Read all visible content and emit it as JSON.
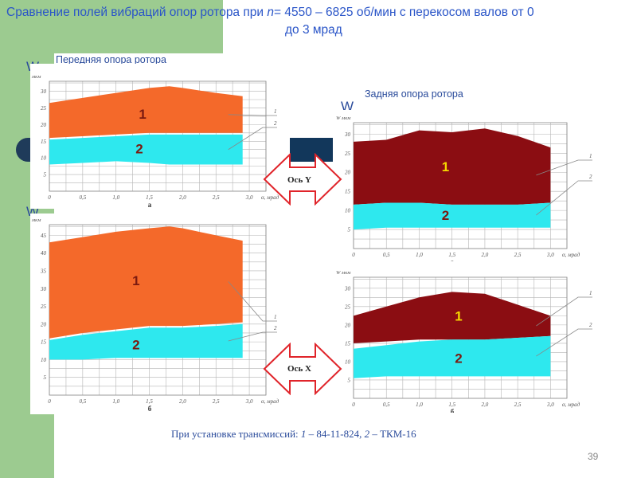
{
  "slide": {
    "title_part1": "Сравнение полей вибраций опор ротора  при   ",
    "title_n": "n",
    "title_part2": "= 4550 – 6825 об/мин с перекосом валов от 0",
    "title_line2": "до 3 мрад",
    "front_label": "Передняя опора ротора",
    "rear_label": "Задняя опора ротора",
    "w_symbol": "W",
    "axis_y_label": "Ось Y",
    "axis_x_label": "Ось X",
    "caption_prefix": "При установке трансмиссий: ",
    "caption_1": "1",
    "caption_mid": " – 84-11-824, ",
    "caption_2": "2",
    "caption_end": " – ТКМ-16",
    "page_number": "39",
    "colors": {
      "accent_green": "#9ccb90",
      "title_blue": "#2a55c8",
      "orange": "#f4692a",
      "cyan": "#2ee8ee",
      "dark_red": "#8b0d12",
      "arrow_red": "#e0242a"
    }
  },
  "chart_data": [
    {
      "id": "front-a",
      "type": "area",
      "panel_label": "а",
      "ylabel": "мкм",
      "xlabel": "α, мрад",
      "x_ticks": [
        "0",
        "0,5",
        "1,0",
        "1,5",
        "2,0",
        "2,5",
        "3,0"
      ],
      "y_ticks": [
        "5",
        "10",
        "15",
        "20",
        "25",
        "30"
      ],
      "ylim": [
        0,
        33
      ],
      "xlim": [
        0,
        3.25
      ],
      "band_labels": [
        "1",
        "2"
      ],
      "legend_marks": [
        "1",
        "2"
      ],
      "series": [
        {
          "name": "1",
          "color": "#f4692a",
          "x": [
            0,
            0.5,
            1.0,
            1.5,
            1.8,
            2.0,
            2.5,
            2.9
          ],
          "upper": [
            26.5,
            28,
            29.5,
            31,
            31.5,
            31,
            29.5,
            28.5
          ],
          "lower": [
            16,
            16.5,
            17,
            17.5,
            17.5,
            17.5,
            17.5,
            17.5
          ]
        },
        {
          "name": "2",
          "color": "#2ee8ee",
          "x": [
            0,
            0.5,
            1.0,
            1.5,
            1.8,
            2.0,
            2.5,
            2.9
          ],
          "upper": [
            15.5,
            16,
            16.5,
            17,
            17,
            17,
            17,
            17
          ],
          "lower": [
            8,
            8.5,
            9,
            8.5,
            8,
            8,
            8,
            8
          ]
        }
      ]
    },
    {
      "id": "front-b",
      "type": "area",
      "panel_label": "б",
      "ylabel": "мкм",
      "xlabel": "α, мрад",
      "x_ticks": [
        "0",
        "0,5",
        "1,0",
        "1,5",
        "2,0",
        "2,5",
        "3,0"
      ],
      "y_ticks": [
        "5",
        "10",
        "15",
        "20",
        "25",
        "30",
        "35",
        "40",
        "45"
      ],
      "ylim": [
        0,
        48
      ],
      "xlim": [
        0,
        3.25
      ],
      "band_labels": [
        "1",
        "2"
      ],
      "legend_marks": [
        "1",
        "2"
      ],
      "series": [
        {
          "name": "1",
          "color": "#f4692a",
          "x": [
            0,
            0.5,
            1.0,
            1.5,
            1.8,
            2.0,
            2.5,
            2.9
          ],
          "upper": [
            43,
            44.5,
            46,
            47,
            47.5,
            47,
            45,
            43.5
          ],
          "lower": [
            16,
            17.5,
            18.5,
            19.5,
            19.5,
            19.5,
            20,
            20.5
          ]
        },
        {
          "name": "2",
          "color": "#2ee8ee",
          "x": [
            0,
            0.5,
            1.0,
            1.5,
            1.8,
            2.0,
            2.5,
            2.9
          ],
          "upper": [
            15.5,
            17,
            18,
            19,
            19,
            19,
            19.5,
            20
          ],
          "lower": [
            10,
            10,
            10.5,
            10.5,
            10.5,
            10.5,
            10.5,
            10.5
          ]
        }
      ]
    },
    {
      "id": "rear-a",
      "type": "area",
      "panel_label": "а",
      "ylabel": "W мкм",
      "xlabel": "α, мрад",
      "x_ticks": [
        "0",
        "0,5",
        "1,0",
        "1,5",
        "2,0",
        "2,5",
        "3,0"
      ],
      "y_ticks": [
        "5",
        "10",
        "15",
        "20",
        "25",
        "30"
      ],
      "ylim": [
        0,
        33
      ],
      "xlim": [
        0,
        3.25
      ],
      "band_labels": [
        "1",
        "2"
      ],
      "legend_marks": [
        "1",
        "2"
      ],
      "series": [
        {
          "name": "1",
          "color": "#8b0d12",
          "x": [
            0,
            0.5,
            1.0,
            1.5,
            2.0,
            2.5,
            3.0
          ],
          "upper": [
            28,
            28.5,
            31,
            30.5,
            31.5,
            29.5,
            26.5
          ],
          "lower": [
            11.5,
            12,
            12,
            11.5,
            11.5,
            11.5,
            12
          ]
        },
        {
          "name": "2",
          "color": "#2ee8ee",
          "x": [
            0,
            0.5,
            1.0,
            1.5,
            2.0,
            2.5,
            3.0
          ],
          "upper": [
            11.5,
            12,
            12,
            11.5,
            11.5,
            11.5,
            12
          ],
          "lower": [
            5,
            5.5,
            5.5,
            5.5,
            5.5,
            5.5,
            5.5
          ]
        }
      ]
    },
    {
      "id": "rear-b",
      "type": "area",
      "panel_label": "б",
      "ylabel": "W мкм",
      "xlabel": "α, мрад",
      "x_ticks": [
        "0",
        "0,5",
        "1,0",
        "1,5",
        "2,0",
        "2,5",
        "3,0"
      ],
      "y_ticks": [
        "5",
        "10",
        "15",
        "20",
        "25",
        "30"
      ],
      "ylim": [
        0,
        33
      ],
      "xlim": [
        0,
        3.25
      ],
      "band_labels": [
        "1",
        "2"
      ],
      "legend_marks": [
        "1",
        "2"
      ],
      "series": [
        {
          "name": "1",
          "color": "#8b0d12",
          "x": [
            0,
            0.5,
            1.0,
            1.5,
            2.0,
            2.5,
            3.0
          ],
          "upper": [
            22.5,
            25,
            27.5,
            29,
            28.5,
            25.5,
            22.5
          ],
          "lower": [
            15,
            15.5,
            16,
            16,
            16,
            16.5,
            17
          ]
        },
        {
          "name": "2",
          "color": "#2ee8ee",
          "x": [
            0,
            0.5,
            1.0,
            1.5,
            2.0,
            2.5,
            3.0
          ],
          "upper": [
            13.5,
            14.5,
            15.5,
            16,
            16,
            16.5,
            17
          ],
          "lower": [
            5.5,
            6,
            6,
            6,
            6,
            6,
            6
          ]
        }
      ]
    }
  ]
}
